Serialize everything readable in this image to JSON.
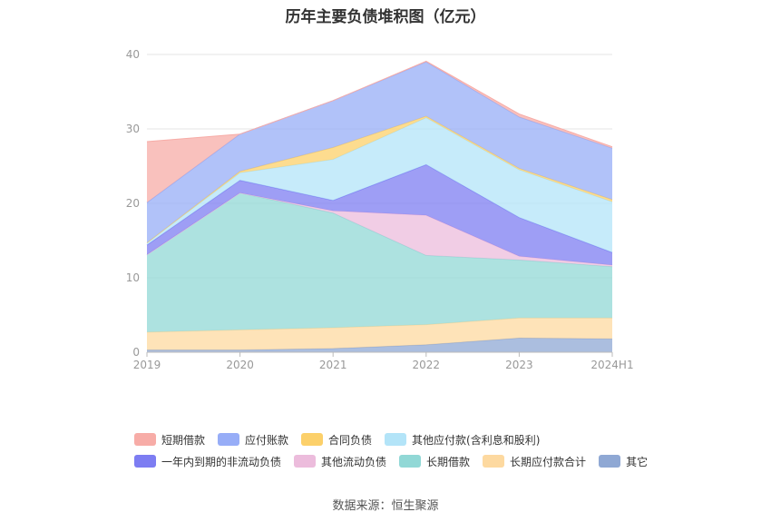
{
  "chart_data": {
    "type": "area",
    "stacked": true,
    "title": "历年主要负债堆积图（亿元）",
    "categories": [
      "2019",
      "2020",
      "2021",
      "2022",
      "2023",
      "2024H1"
    ],
    "ylim": [
      0,
      40
    ],
    "yticks": [
      0,
      10,
      20,
      30,
      40
    ],
    "series": [
      {
        "name": "其它",
        "color": "#8fa8d4",
        "values": [
          0.3,
          0.3,
          0.5,
          1.0,
          1.9,
          1.8
        ]
      },
      {
        "name": "长期应付款合计",
        "color": "#fdd9a0",
        "values": [
          2.4,
          2.7,
          2.8,
          2.7,
          2.7,
          2.8
        ]
      },
      {
        "name": "长期借款",
        "color": "#91d8d6",
        "values": [
          10.4,
          18.4,
          15.4,
          9.3,
          7.8,
          6.9
        ]
      },
      {
        "name": "其他流动负债",
        "color": "#ecbcdc",
        "values": [
          0.0,
          0.0,
          0.3,
          5.4,
          0.5,
          0.2
        ]
      },
      {
        "name": "一年内到期的非流动负债",
        "color": "#7d7df2",
        "values": [
          1.3,
          1.7,
          1.4,
          6.8,
          5.2,
          1.7
        ]
      },
      {
        "name": "其他应付款(含利息和股利)",
        "color": "#b3e4f8",
        "values": [
          0.3,
          1.0,
          5.5,
          6.3,
          6.4,
          6.8
        ]
      },
      {
        "name": "合同负债",
        "color": "#fcd06a",
        "values": [
          0.0,
          0.2,
          1.6,
          0.2,
          0.2,
          0.3
        ]
      },
      {
        "name": "应付账款",
        "color": "#97adf7",
        "values": [
          5.4,
          5.0,
          6.3,
          7.3,
          6.9,
          6.9
        ]
      },
      {
        "name": "短期借款",
        "color": "#f7aca7",
        "values": [
          8.2,
          0.0,
          0.0,
          0.1,
          0.4,
          0.2
        ]
      }
    ],
    "legend": {
      "position": "bottom",
      "rows": [
        [
          "短期借款",
          "应付账款",
          "合同负债",
          "其他应付款(含利息和股利)"
        ],
        [
          "一年内到期的非流动负债",
          "其他流动负债",
          "长期借款",
          "长期应付款合计",
          "其它"
        ]
      ]
    },
    "grid": true
  },
  "source_text": "数据来源：恒生聚源"
}
